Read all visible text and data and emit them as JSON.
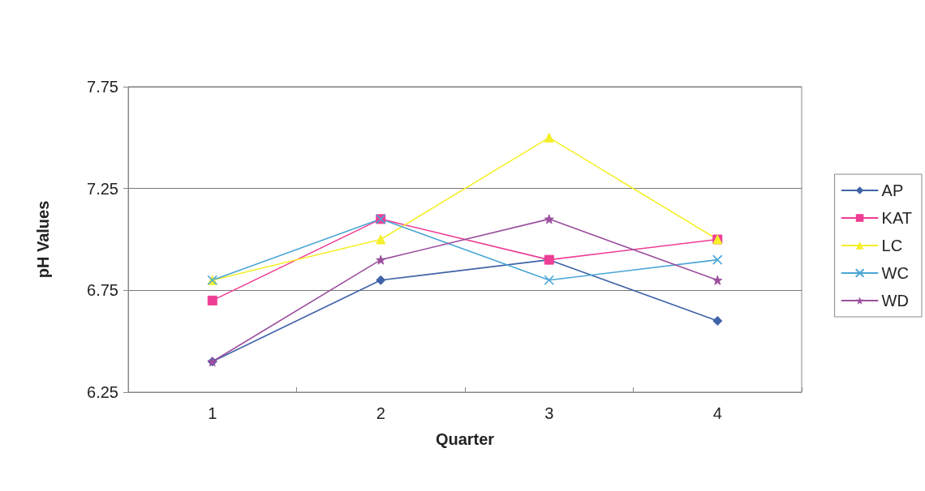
{
  "chart_data": {
    "type": "line",
    "xlabel": "Quarter",
    "ylabel": "pH Values",
    "categories": [
      "1",
      "2",
      "3",
      "4"
    ],
    "series": [
      {
        "name": "AP",
        "color": "#3f63a8",
        "marker": "diamond",
        "values": [
          6.4,
          6.8,
          6.9,
          6.6
        ]
      },
      {
        "name": "KAT",
        "color": "#ee3d94",
        "marker": "square",
        "values": [
          6.7,
          7.1,
          6.9,
          7.0
        ]
      },
      {
        "name": "LC",
        "color": "#f5ef2a",
        "marker": "triangle",
        "values": [
          6.8,
          7.0,
          7.5,
          7.0
        ]
      },
      {
        "name": "WC",
        "color": "#4aa6d6",
        "marker": "cross",
        "values": [
          6.8,
          7.1,
          6.8,
          6.9
        ]
      },
      {
        "name": "WD",
        "color": "#9b4f9e",
        "marker": "star",
        "values": [
          6.4,
          6.9,
          7.1,
          6.8
        ]
      }
    ],
    "ylim": [
      6.25,
      7.75
    ],
    "yticks": [
      6.25,
      6.75,
      7.25,
      7.75
    ],
    "grid": "y",
    "legend": "right",
    "line_style": "solid"
  }
}
